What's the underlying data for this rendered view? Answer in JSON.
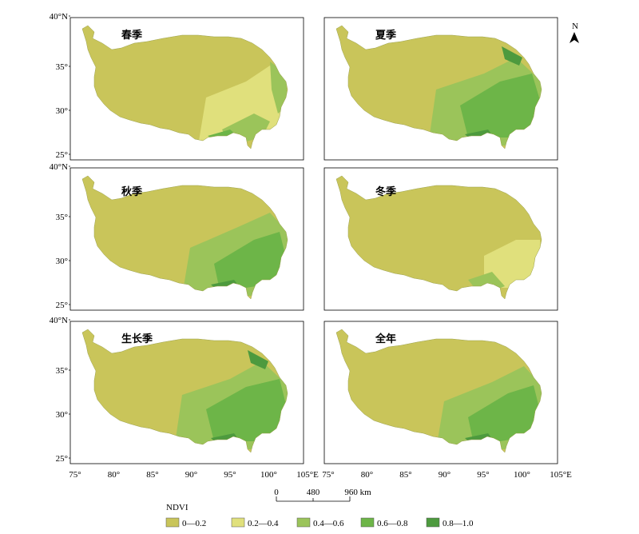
{
  "map": {
    "north_arrow": {
      "label": "N"
    },
    "panels": [
      {
        "title": "春季",
        "ramp": [
          0,
          1,
          2
        ]
      },
      {
        "title": "夏季",
        "ramp": [
          0,
          2,
          3
        ]
      },
      {
        "title": "秋季",
        "ramp": [
          0,
          2,
          3
        ]
      },
      {
        "title": "冬季",
        "ramp": [
          0,
          1,
          2
        ]
      },
      {
        "title": "生长季",
        "ramp": [
          0,
          2,
          3
        ]
      },
      {
        "title": "全年",
        "ramp": [
          0,
          2,
          3
        ]
      }
    ],
    "axes": {
      "lat_ticks": [
        "40°N",
        "35°",
        "30°",
        "25°"
      ],
      "lon_ticks_left": [
        "75°",
        "80°",
        "85°",
        "90°",
        "95°",
        "100°",
        "105°E"
      ],
      "lon_ticks_right": [
        "75°",
        "80°",
        "85°",
        "90°",
        "95°",
        "100°",
        "105°E"
      ]
    },
    "scale_bar": {
      "labels": [
        "0",
        "480",
        "960 km"
      ]
    },
    "legend": {
      "title": "NDVI",
      "items": [
        {
          "label": "0—0.2",
          "color": "#c9c55a"
        },
        {
          "label": "0.2—0.4",
          "color": "#e0e07c"
        },
        {
          "label": "0.4—0.6",
          "color": "#9bc45a"
        },
        {
          "label": "0.6—0.8",
          "color": "#6db548"
        },
        {
          "label": "0.8—1.0",
          "color": "#4d9a3e"
        }
      ]
    }
  }
}
